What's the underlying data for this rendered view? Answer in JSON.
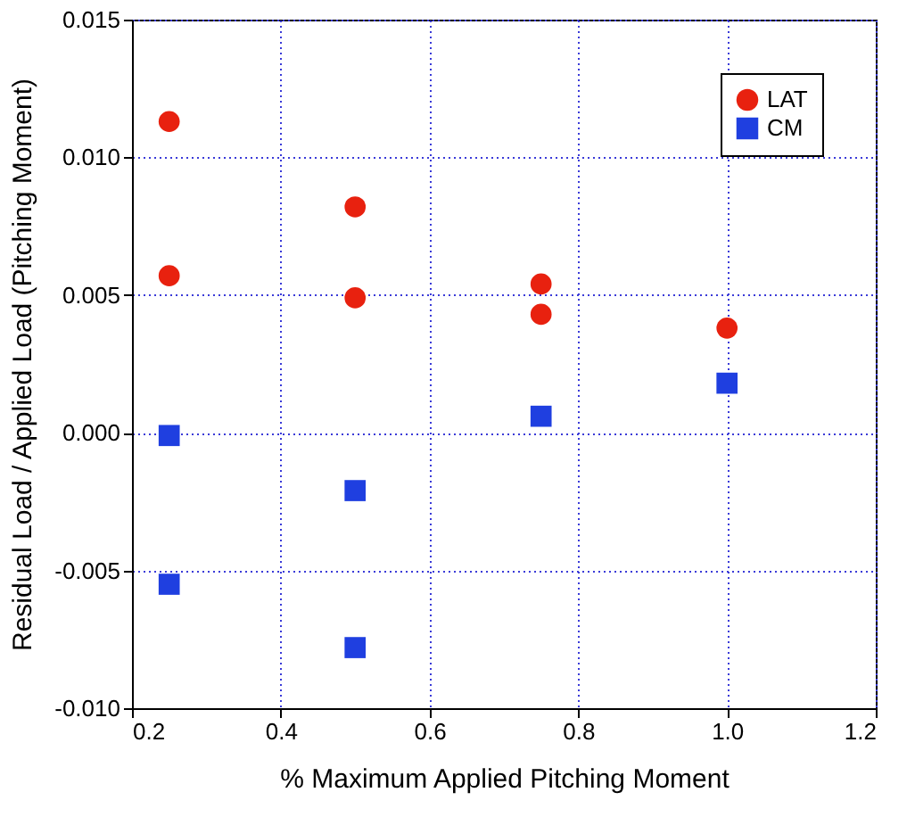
{
  "chart_data": {
    "type": "scatter",
    "xlabel": "% Maximum Applied Pitching Moment",
    "ylabel": "Residual Load / Applied Load (Pitching Moment)",
    "xlim": [
      0.2,
      1.2
    ],
    "xticks": [
      0.2,
      0.4,
      0.6,
      0.8,
      {
        "value": 1.0,
        "label": "1.0"
      },
      1.2
    ],
    "ylim": [
      -0.01,
      0.015
    ],
    "yticks": [
      {
        "value": -0.01,
        "label": "-0.010"
      },
      {
        "value": -0.005,
        "label": "-0.005"
      },
      {
        "value": 0,
        "label": "0.000"
      },
      {
        "value": 0.005,
        "label": "0.005"
      },
      {
        "value": 0.01,
        "label": "0.010"
      },
      {
        "value": 0.015,
        "label": "0.015"
      }
    ],
    "grid": true,
    "legend": "top right",
    "series": [
      {
        "name": "LAT",
        "color": "#e8210f",
        "marker": "circle",
        "x": [
          0.25,
          0.25,
          0.5,
          0.5,
          0.75,
          0.75,
          1.0
        ],
        "values": [
          0.0113,
          0.0057,
          0.0082,
          0.0049,
          0.0054,
          0.0043,
          0.0038
        ]
      },
      {
        "name": "CM",
        "color": "#1f3fe0",
        "marker": "square",
        "x": [
          0.25,
          0.25,
          0.5,
          0.5,
          0.75,
          1.0
        ],
        "values": [
          -0.0001,
          -0.0055,
          -0.0021,
          -0.0078,
          0.0006,
          0.0018
        ]
      }
    ]
  }
}
